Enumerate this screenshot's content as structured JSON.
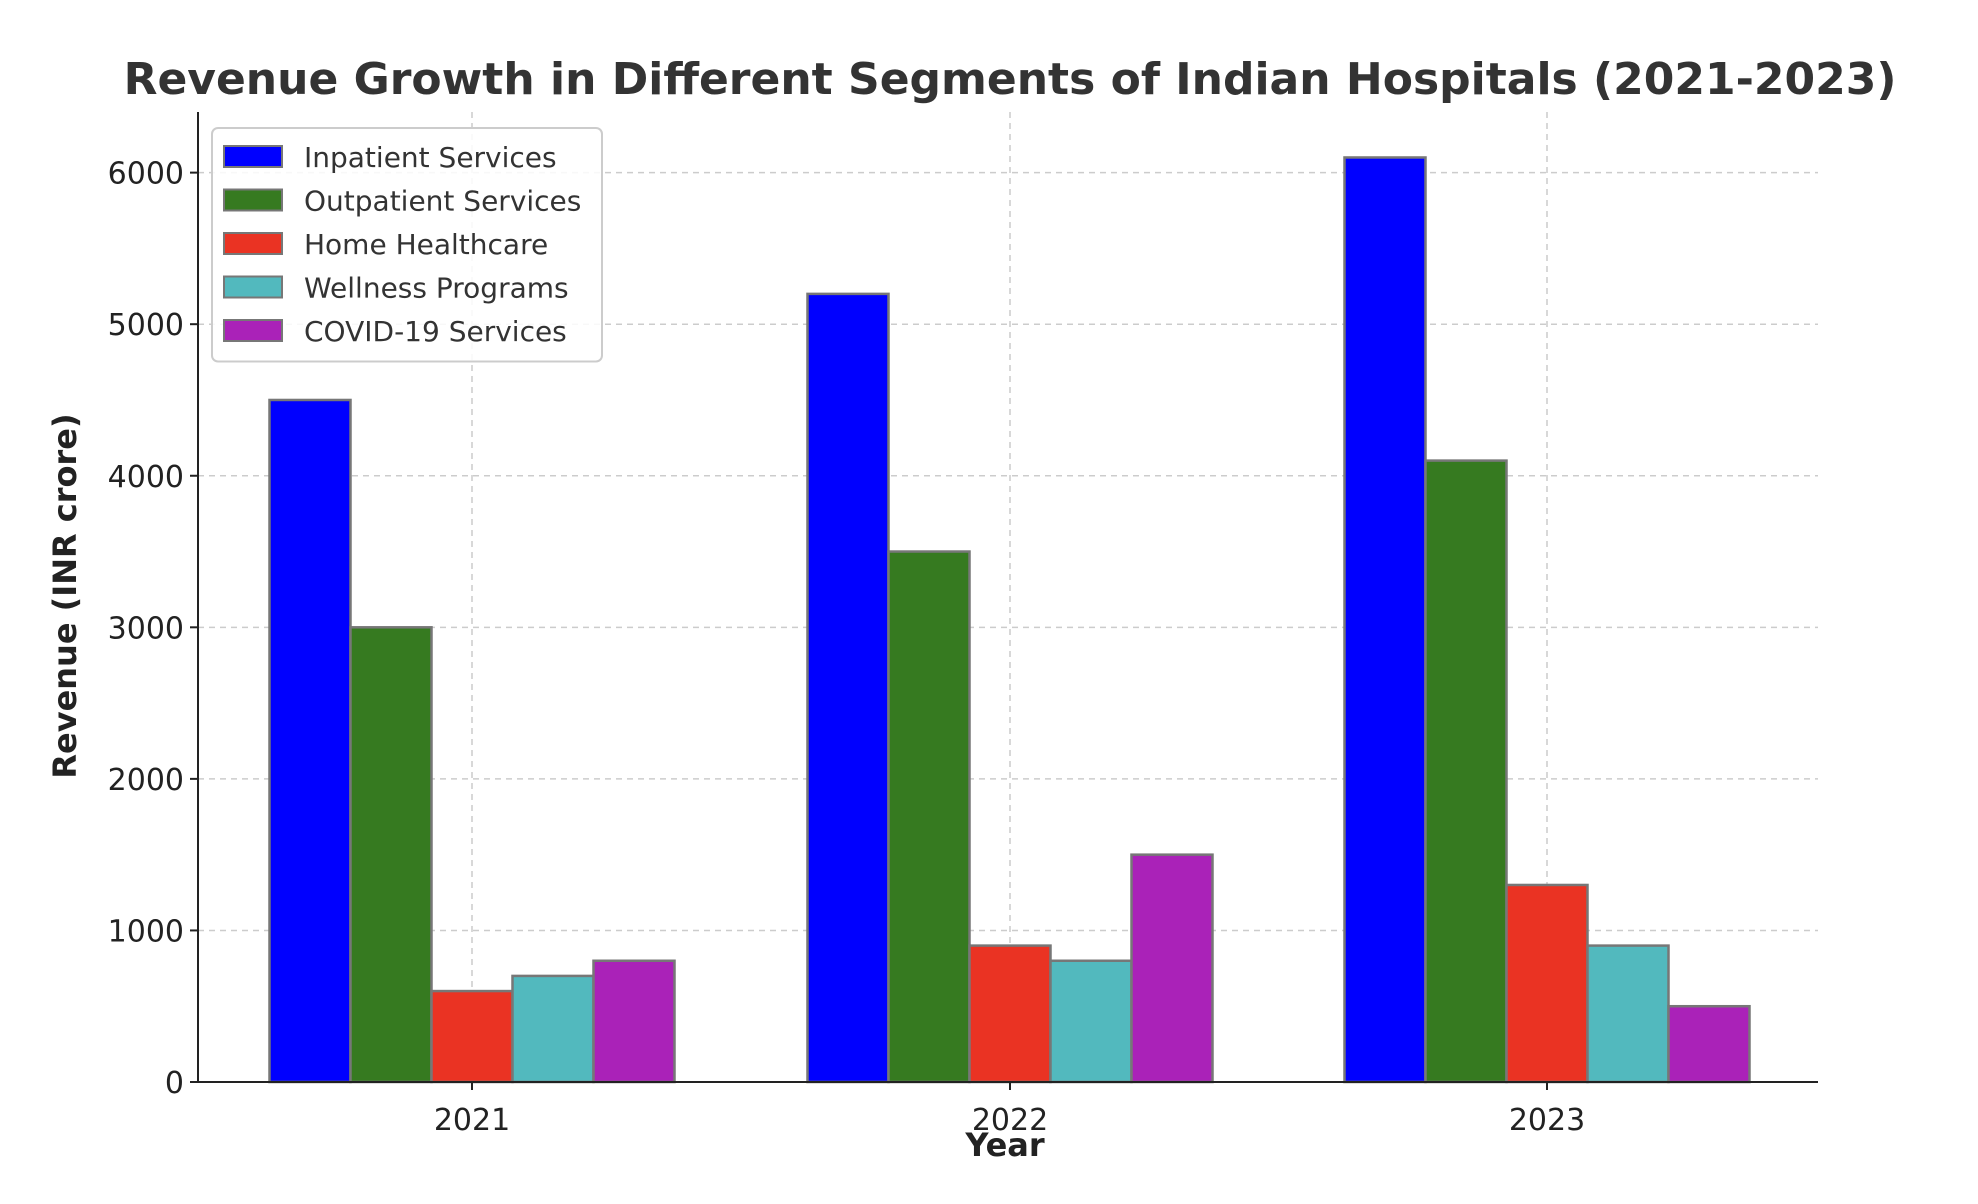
{
  "chart_data": {
    "type": "bar",
    "title": "Revenue Growth in Different Segments of Indian Hospitals (2021-2023)",
    "xlabel": "Year",
    "ylabel": "Revenue (INR crore)",
    "categories": [
      "2021",
      "2022",
      "2023"
    ],
    "ylim": [
      0,
      6400
    ],
    "yticks": [
      0,
      1000,
      2000,
      3000,
      4000,
      5000,
      6000
    ],
    "ytick_labels": [
      "0",
      "1000",
      "2000",
      "3000",
      "4000",
      "5000",
      "6000"
    ],
    "grid": true,
    "legend_position": "top-left",
    "series": [
      {
        "name": "Inpatient Services",
        "color": "#0000ff",
        "values": [
          4500,
          5200,
          6100
        ]
      },
      {
        "name": "Outpatient Services",
        "color": "#367a20",
        "values": [
          3000,
          3500,
          4100
        ]
      },
      {
        "name": "Home Healthcare",
        "color": "#ea3323",
        "values": [
          600,
          900,
          1300
        ]
      },
      {
        "name": "Wellness Programs",
        "color": "#52b9be",
        "values": [
          700,
          800,
          900
        ]
      },
      {
        "name": "COVID-19 Services",
        "color": "#aa22b8",
        "values": [
          800,
          1500,
          500
        ]
      }
    ]
  }
}
